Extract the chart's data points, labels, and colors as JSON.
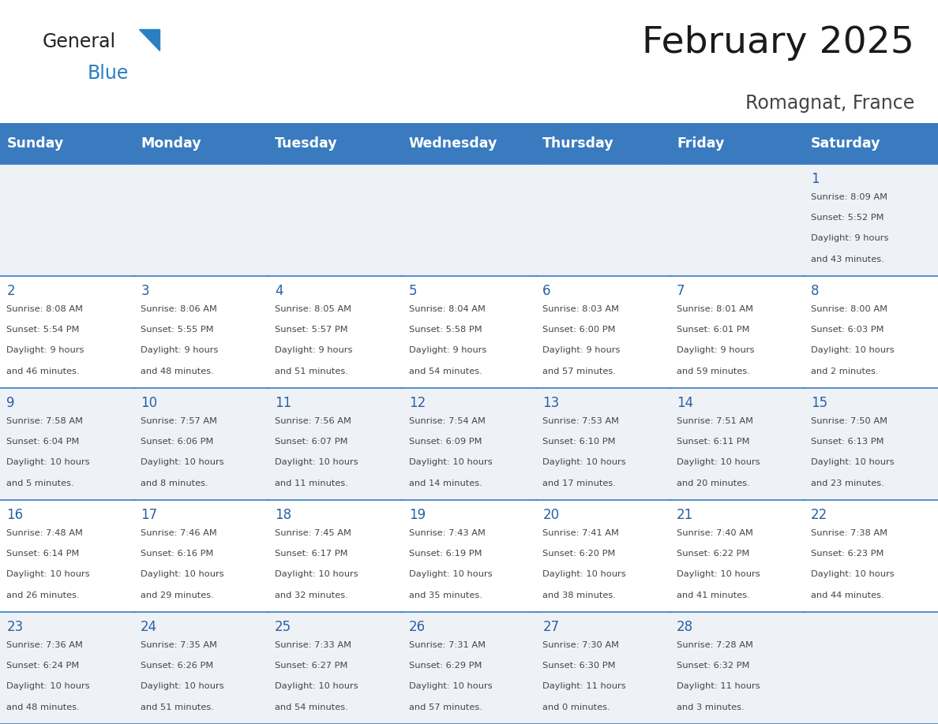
{
  "title": "February 2025",
  "subtitle": "Romagnat, France",
  "days_of_week": [
    "Sunday",
    "Monday",
    "Tuesday",
    "Wednesday",
    "Thursday",
    "Friday",
    "Saturday"
  ],
  "header_bg": "#3a7bbf",
  "header_text": "#ffffff",
  "row_bg_odd": "#eef2f7",
  "row_bg_even": "#ffffff",
  "cell_border": "#3a7bbf",
  "day_number_color": "#2a5fa5",
  "text_color": "#444444",
  "logo_general_color": "#222222",
  "logo_blue_color": "#2a7fc1",
  "logo_triangle_color": "#2a7fc1",
  "calendar_data": [
    [
      null,
      null,
      null,
      null,
      null,
      null,
      {
        "day": "1",
        "sunrise": "8:09 AM",
        "sunset": "5:52 PM",
        "daylight_line1": "Daylight: 9 hours",
        "daylight_line2": "and 43 minutes."
      }
    ],
    [
      {
        "day": "2",
        "sunrise": "8:08 AM",
        "sunset": "5:54 PM",
        "daylight_line1": "Daylight: 9 hours",
        "daylight_line2": "and 46 minutes."
      },
      {
        "day": "3",
        "sunrise": "8:06 AM",
        "sunset": "5:55 PM",
        "daylight_line1": "Daylight: 9 hours",
        "daylight_line2": "and 48 minutes."
      },
      {
        "day": "4",
        "sunrise": "8:05 AM",
        "sunset": "5:57 PM",
        "daylight_line1": "Daylight: 9 hours",
        "daylight_line2": "and 51 minutes."
      },
      {
        "day": "5",
        "sunrise": "8:04 AM",
        "sunset": "5:58 PM",
        "daylight_line1": "Daylight: 9 hours",
        "daylight_line2": "and 54 minutes."
      },
      {
        "day": "6",
        "sunrise": "8:03 AM",
        "sunset": "6:00 PM",
        "daylight_line1": "Daylight: 9 hours",
        "daylight_line2": "and 57 minutes."
      },
      {
        "day": "7",
        "sunrise": "8:01 AM",
        "sunset": "6:01 PM",
        "daylight_line1": "Daylight: 9 hours",
        "daylight_line2": "and 59 minutes."
      },
      {
        "day": "8",
        "sunrise": "8:00 AM",
        "sunset": "6:03 PM",
        "daylight_line1": "Daylight: 10 hours",
        "daylight_line2": "and 2 minutes."
      }
    ],
    [
      {
        "day": "9",
        "sunrise": "7:58 AM",
        "sunset": "6:04 PM",
        "daylight_line1": "Daylight: 10 hours",
        "daylight_line2": "and 5 minutes."
      },
      {
        "day": "10",
        "sunrise": "7:57 AM",
        "sunset": "6:06 PM",
        "daylight_line1": "Daylight: 10 hours",
        "daylight_line2": "and 8 minutes."
      },
      {
        "day": "11",
        "sunrise": "7:56 AM",
        "sunset": "6:07 PM",
        "daylight_line1": "Daylight: 10 hours",
        "daylight_line2": "and 11 minutes."
      },
      {
        "day": "12",
        "sunrise": "7:54 AM",
        "sunset": "6:09 PM",
        "daylight_line1": "Daylight: 10 hours",
        "daylight_line2": "and 14 minutes."
      },
      {
        "day": "13",
        "sunrise": "7:53 AM",
        "sunset": "6:10 PM",
        "daylight_line1": "Daylight: 10 hours",
        "daylight_line2": "and 17 minutes."
      },
      {
        "day": "14",
        "sunrise": "7:51 AM",
        "sunset": "6:11 PM",
        "daylight_line1": "Daylight: 10 hours",
        "daylight_line2": "and 20 minutes."
      },
      {
        "day": "15",
        "sunrise": "7:50 AM",
        "sunset": "6:13 PM",
        "daylight_line1": "Daylight: 10 hours",
        "daylight_line2": "and 23 minutes."
      }
    ],
    [
      {
        "day": "16",
        "sunrise": "7:48 AM",
        "sunset": "6:14 PM",
        "daylight_line1": "Daylight: 10 hours",
        "daylight_line2": "and 26 minutes."
      },
      {
        "day": "17",
        "sunrise": "7:46 AM",
        "sunset": "6:16 PM",
        "daylight_line1": "Daylight: 10 hours",
        "daylight_line2": "and 29 minutes."
      },
      {
        "day": "18",
        "sunrise": "7:45 AM",
        "sunset": "6:17 PM",
        "daylight_line1": "Daylight: 10 hours",
        "daylight_line2": "and 32 minutes."
      },
      {
        "day": "19",
        "sunrise": "7:43 AM",
        "sunset": "6:19 PM",
        "daylight_line1": "Daylight: 10 hours",
        "daylight_line2": "and 35 minutes."
      },
      {
        "day": "20",
        "sunrise": "7:41 AM",
        "sunset": "6:20 PM",
        "daylight_line1": "Daylight: 10 hours",
        "daylight_line2": "and 38 minutes."
      },
      {
        "day": "21",
        "sunrise": "7:40 AM",
        "sunset": "6:22 PM",
        "daylight_line1": "Daylight: 10 hours",
        "daylight_line2": "and 41 minutes."
      },
      {
        "day": "22",
        "sunrise": "7:38 AM",
        "sunset": "6:23 PM",
        "daylight_line1": "Daylight: 10 hours",
        "daylight_line2": "and 44 minutes."
      }
    ],
    [
      {
        "day": "23",
        "sunrise": "7:36 AM",
        "sunset": "6:24 PM",
        "daylight_line1": "Daylight: 10 hours",
        "daylight_line2": "and 48 minutes."
      },
      {
        "day": "24",
        "sunrise": "7:35 AM",
        "sunset": "6:26 PM",
        "daylight_line1": "Daylight: 10 hours",
        "daylight_line2": "and 51 minutes."
      },
      {
        "day": "25",
        "sunrise": "7:33 AM",
        "sunset": "6:27 PM",
        "daylight_line1": "Daylight: 10 hours",
        "daylight_line2": "and 54 minutes."
      },
      {
        "day": "26",
        "sunrise": "7:31 AM",
        "sunset": "6:29 PM",
        "daylight_line1": "Daylight: 10 hours",
        "daylight_line2": "and 57 minutes."
      },
      {
        "day": "27",
        "sunrise": "7:30 AM",
        "sunset": "6:30 PM",
        "daylight_line1": "Daylight: 11 hours",
        "daylight_line2": "and 0 minutes."
      },
      {
        "day": "28",
        "sunrise": "7:28 AM",
        "sunset": "6:32 PM",
        "daylight_line1": "Daylight: 11 hours",
        "daylight_line2": "and 3 minutes."
      },
      null
    ]
  ]
}
